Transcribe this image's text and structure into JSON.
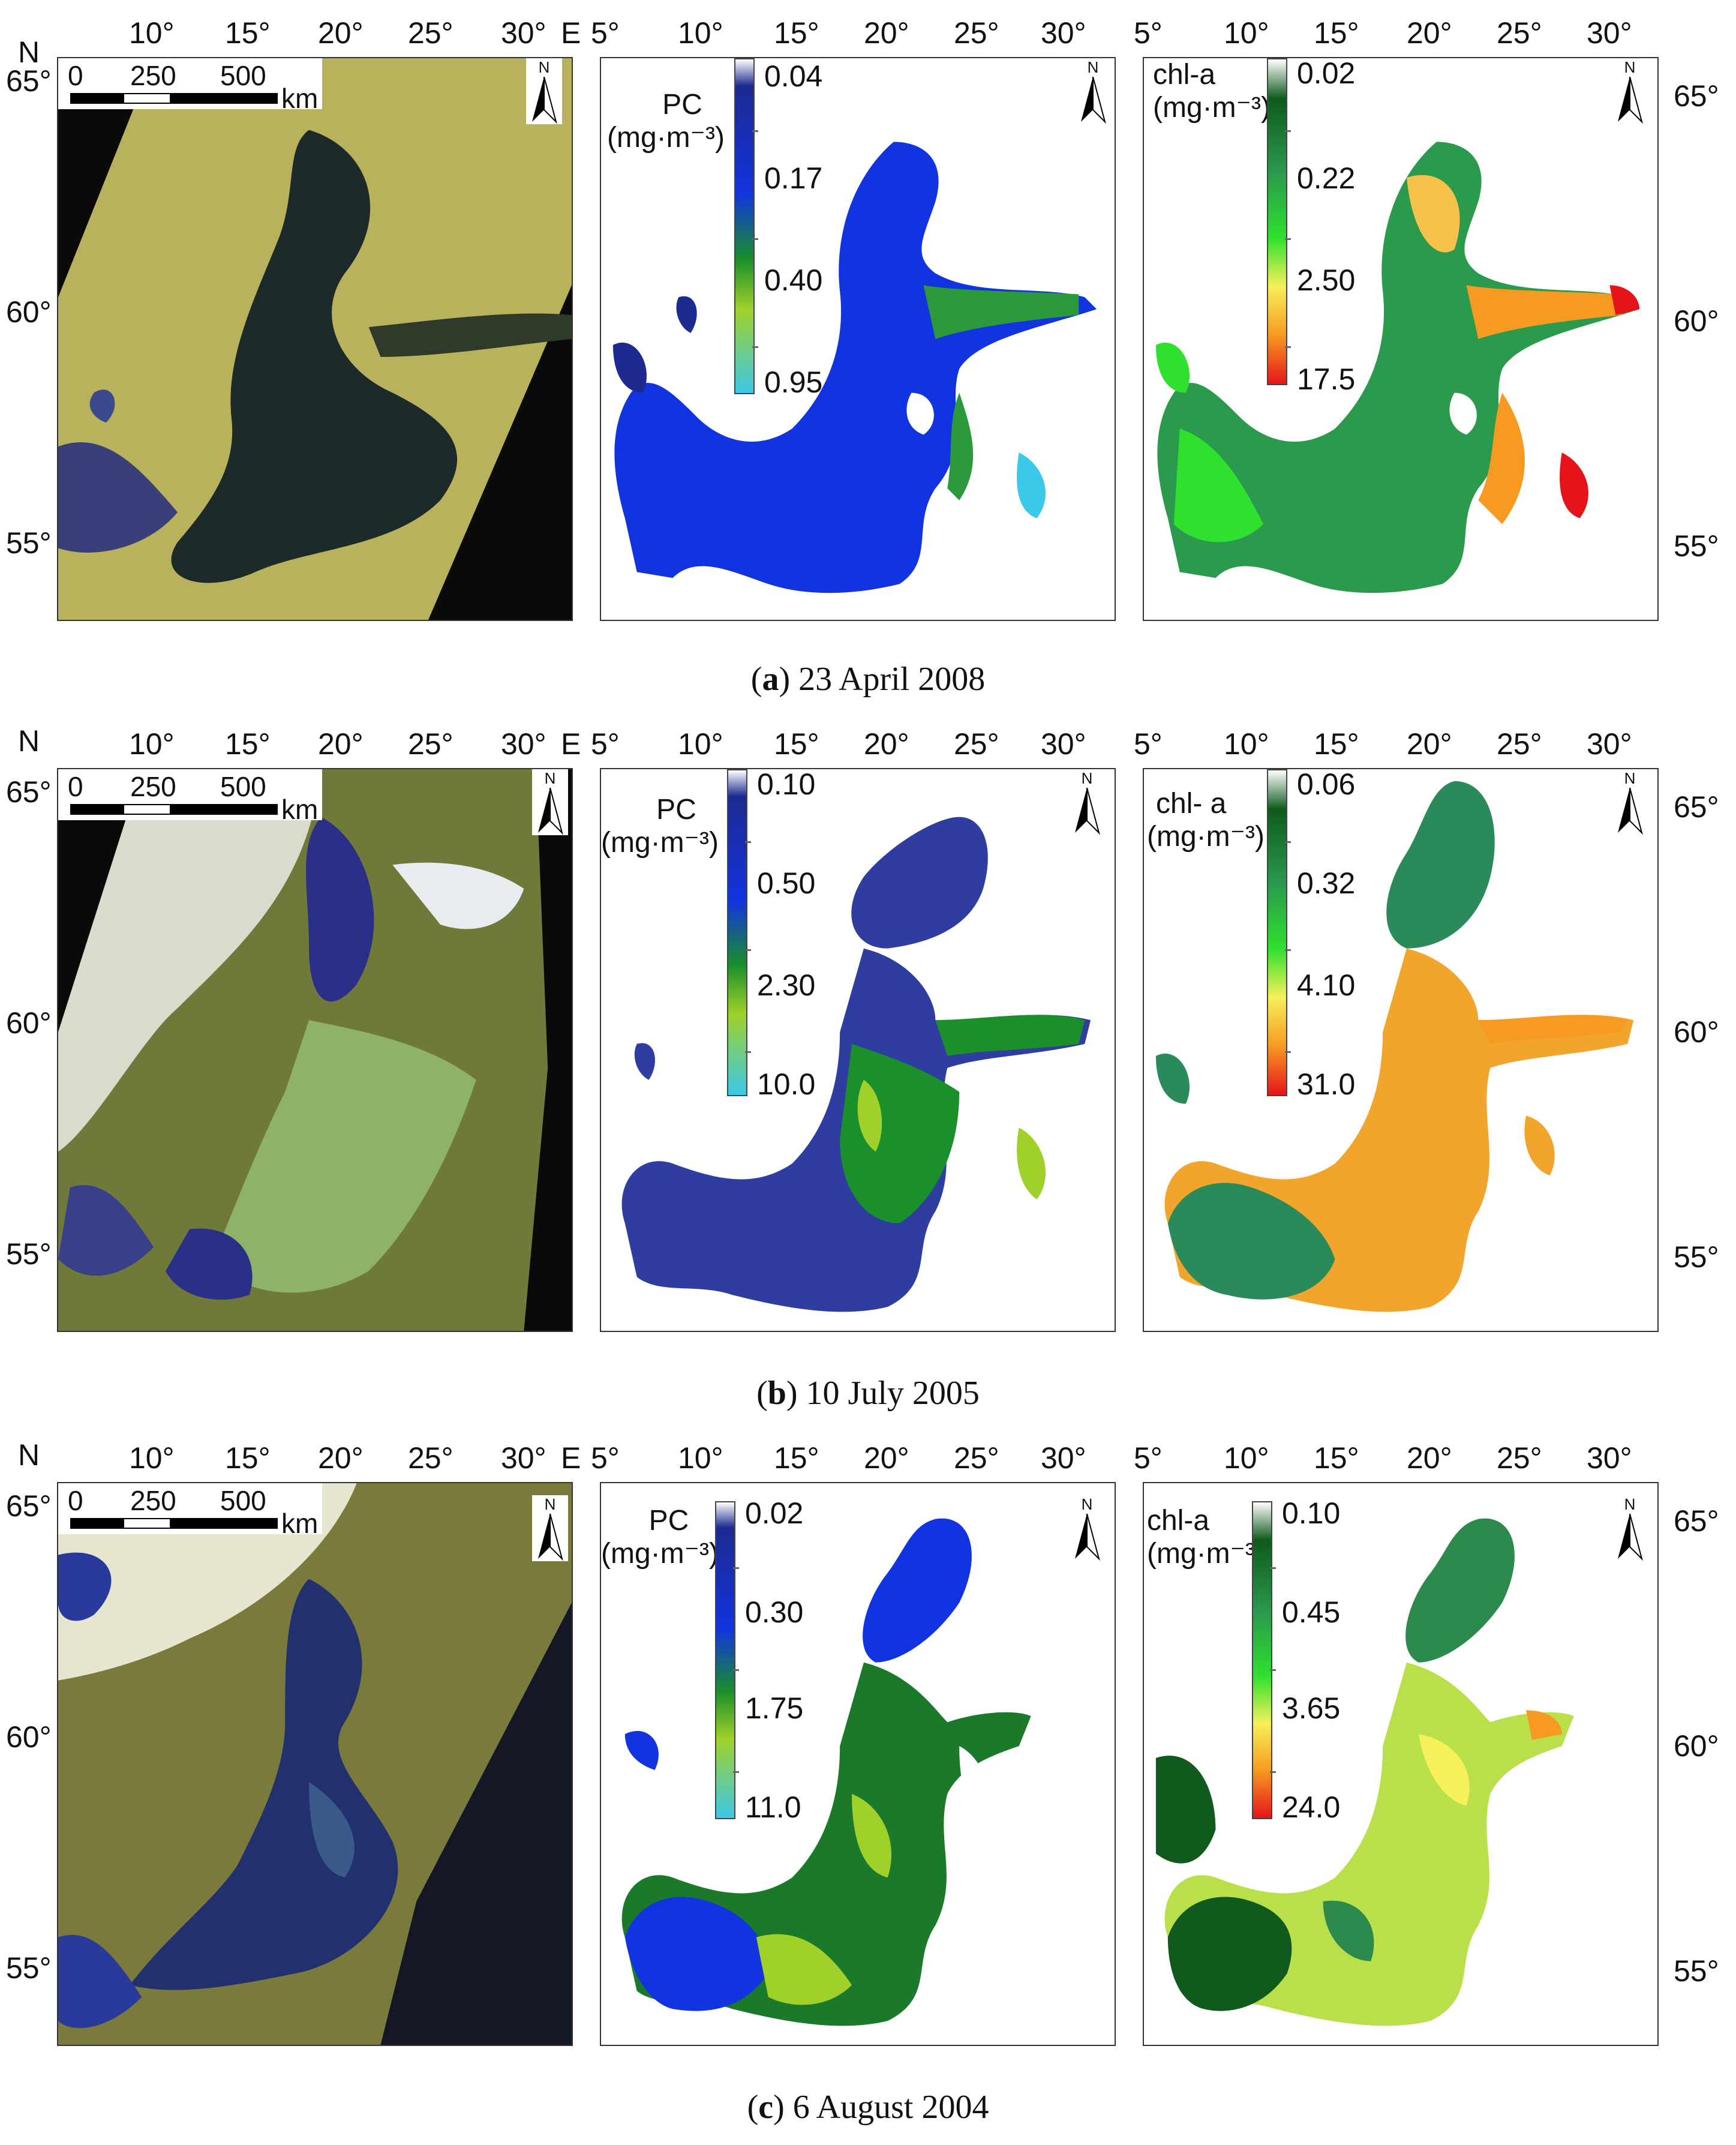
{
  "rows": [
    {
      "caption_letter": "a",
      "caption_text": "23 April 2008",
      "top_lon_labels": [
        "10°",
        "15°",
        "20°",
        "25°",
        "30°",
        "5°",
        "10°",
        "15°",
        "20°",
        "25°",
        "30°",
        "5°",
        "10°",
        "15°",
        "20°",
        "25°",
        "30°"
      ],
      "corner_N": "N",
      "corner_E": "E",
      "lat_left": [
        "65°",
        "60°",
        "55°"
      ],
      "lat_right": [
        "65°",
        "60°",
        "55°"
      ],
      "scale_labels": [
        "0",
        "250",
        "500"
      ],
      "scale_unit": "km",
      "north_label": "N",
      "pc_legend": {
        "title_line1": "PC",
        "title_line2": "(mg·m⁻³)",
        "values": [
          "0.04",
          "0.17",
          "0.40",
          "0.95"
        ]
      },
      "chl_legend": {
        "title_line1": "chl-a",
        "title_line2": "(mg·m⁻³)",
        "values": [
          "0.02",
          "0.22",
          "2.50",
          "17.5"
        ]
      }
    },
    {
      "caption_letter": "b",
      "caption_text": "10 July 2005",
      "top_lon_labels": [
        "10°",
        "15°",
        "20°",
        "25°",
        "30°",
        "5°",
        "10°",
        "15°",
        "20°",
        "25°",
        "30°",
        "5°",
        "10°",
        "15°",
        "20°",
        "25°",
        "30°"
      ],
      "corner_N": "N",
      "corner_E": "E",
      "lat_left": [
        "65°",
        "60°",
        "55°"
      ],
      "lat_right": [
        "65°",
        "60°",
        "55°"
      ],
      "scale_labels": [
        "0",
        "250",
        "500"
      ],
      "scale_unit": "km",
      "north_label": "N",
      "pc_legend": {
        "title_line1": "PC",
        "title_line2": "(mg·m⁻³)",
        "values": [
          "0.10",
          "0.50",
          "2.30",
          "10.0"
        ]
      },
      "chl_legend": {
        "title_line1": "chl- a",
        "title_line2": "(mg·m⁻³)",
        "values": [
          "0.06",
          "0.32",
          "4.10",
          "31.0"
        ]
      }
    },
    {
      "caption_letter": "c",
      "caption_text": "6 August 2004",
      "top_lon_labels": [
        "10°",
        "15°",
        "20°",
        "25°",
        "30°",
        "5°",
        "10°",
        "15°",
        "20°",
        "25°",
        "30°",
        "5°",
        "10°",
        "15°",
        "20°",
        "25°",
        "30°"
      ],
      "corner_N": "N",
      "corner_E": "E",
      "lat_left": [
        "65°",
        "60°",
        "55°"
      ],
      "lat_right": [
        "65°",
        "60°",
        "55°"
      ],
      "scale_labels": [
        "0",
        "250",
        "500"
      ],
      "scale_unit": "km",
      "north_label": "N",
      "pc_legend": {
        "title_line1": "PC",
        "title_line2": "(mg·m⁻³)",
        "values": [
          "0.02",
          "0.30",
          "1.75",
          "11.0"
        ]
      },
      "chl_legend": {
        "title_line1": "chl-a",
        "title_line2": "(mg·m⁻³)",
        "values": [
          "0.10",
          "0.45",
          "3.65",
          "24.0"
        ]
      }
    }
  ],
  "colors": {
    "pc_gradient": [
      "#ffffff",
      "#1d2a8f",
      "#1233e0",
      "#1a8f2a",
      "#9fd12a",
      "#3cc8e8"
    ],
    "chl_gradient": [
      "#ffffff",
      "#0f5a1c",
      "#2b9a4c",
      "#2fe02f",
      "#f6f05a",
      "#f79a22",
      "#e5141a"
    ]
  }
}
